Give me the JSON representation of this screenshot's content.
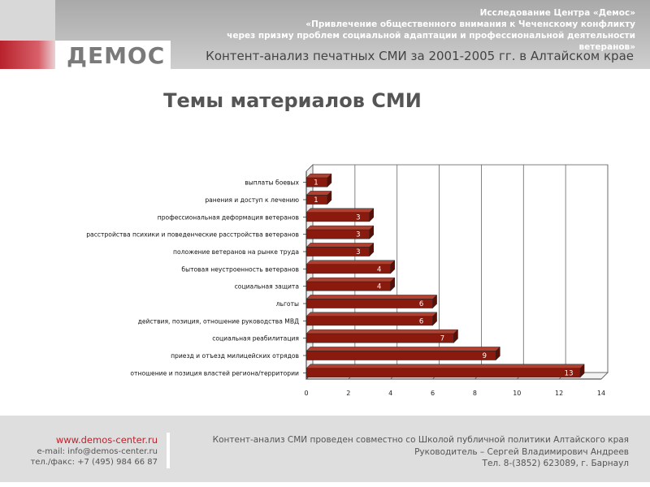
{
  "header": {
    "brand_logo": "demos-logo",
    "org_line": "Исследование Центра «Демос»",
    "study_line1": "«Привлечение общественного внимания к Чеченскому конфликту",
    "study_line2": "через призму проблем социальной адаптации и профессиональной деятельности",
    "study_line3": "ветеранов»",
    "subtitle": "Контент-анализ печатных СМИ за 2001-2005 гг. в Алтайском крае"
  },
  "colors": {
    "accent": "#b8222c",
    "bar_fill": "#8b1a0e",
    "bar_side": "#5a0f06",
    "bar_top": "#b04030"
  },
  "chart_data": {
    "type": "bar",
    "orientation": "horizontal",
    "title": "Темы материалов СМИ",
    "categories": [
      "выплаты боевых",
      "ранения и доступ к лечению",
      "профессиональная деформация ветеранов",
      "расстройства психики и поведенческие расстройства ветеранов",
      "положение ветеранов на рынке труда",
      "бытовая неустроенность ветеранов",
      "социальная защита",
      "льготы",
      "действия, позиция, отношение руководства МВД",
      "социальная реабилитация",
      "приезд и отъезд милицейских отрядов",
      "отношение и позиция властей региона/территории"
    ],
    "values": [
      1,
      1,
      3,
      3,
      3,
      4,
      4,
      6,
      6,
      7,
      9,
      13
    ],
    "xlim": [
      0,
      14
    ],
    "xticks": [
      0,
      2,
      4,
      6,
      8,
      10,
      12,
      14
    ],
    "grid": true,
    "data_labels": true,
    "legend": "none",
    "xlabel": "",
    "ylabel": ""
  },
  "footer": {
    "website": "www.demos-center.ru",
    "email": "e-mail: info@demos-center.ru",
    "phone_fax": "тел./факс: +7 (495) 984 66 87",
    "note": "Контент-анализ СМИ проведен совместно со Школой публичной политики Алтайского края",
    "supervisor": "Руководитель – Сергей Владимирович Андреев",
    "contact": "Тел. 8-(3852) 623089, г. Барнаул"
  }
}
